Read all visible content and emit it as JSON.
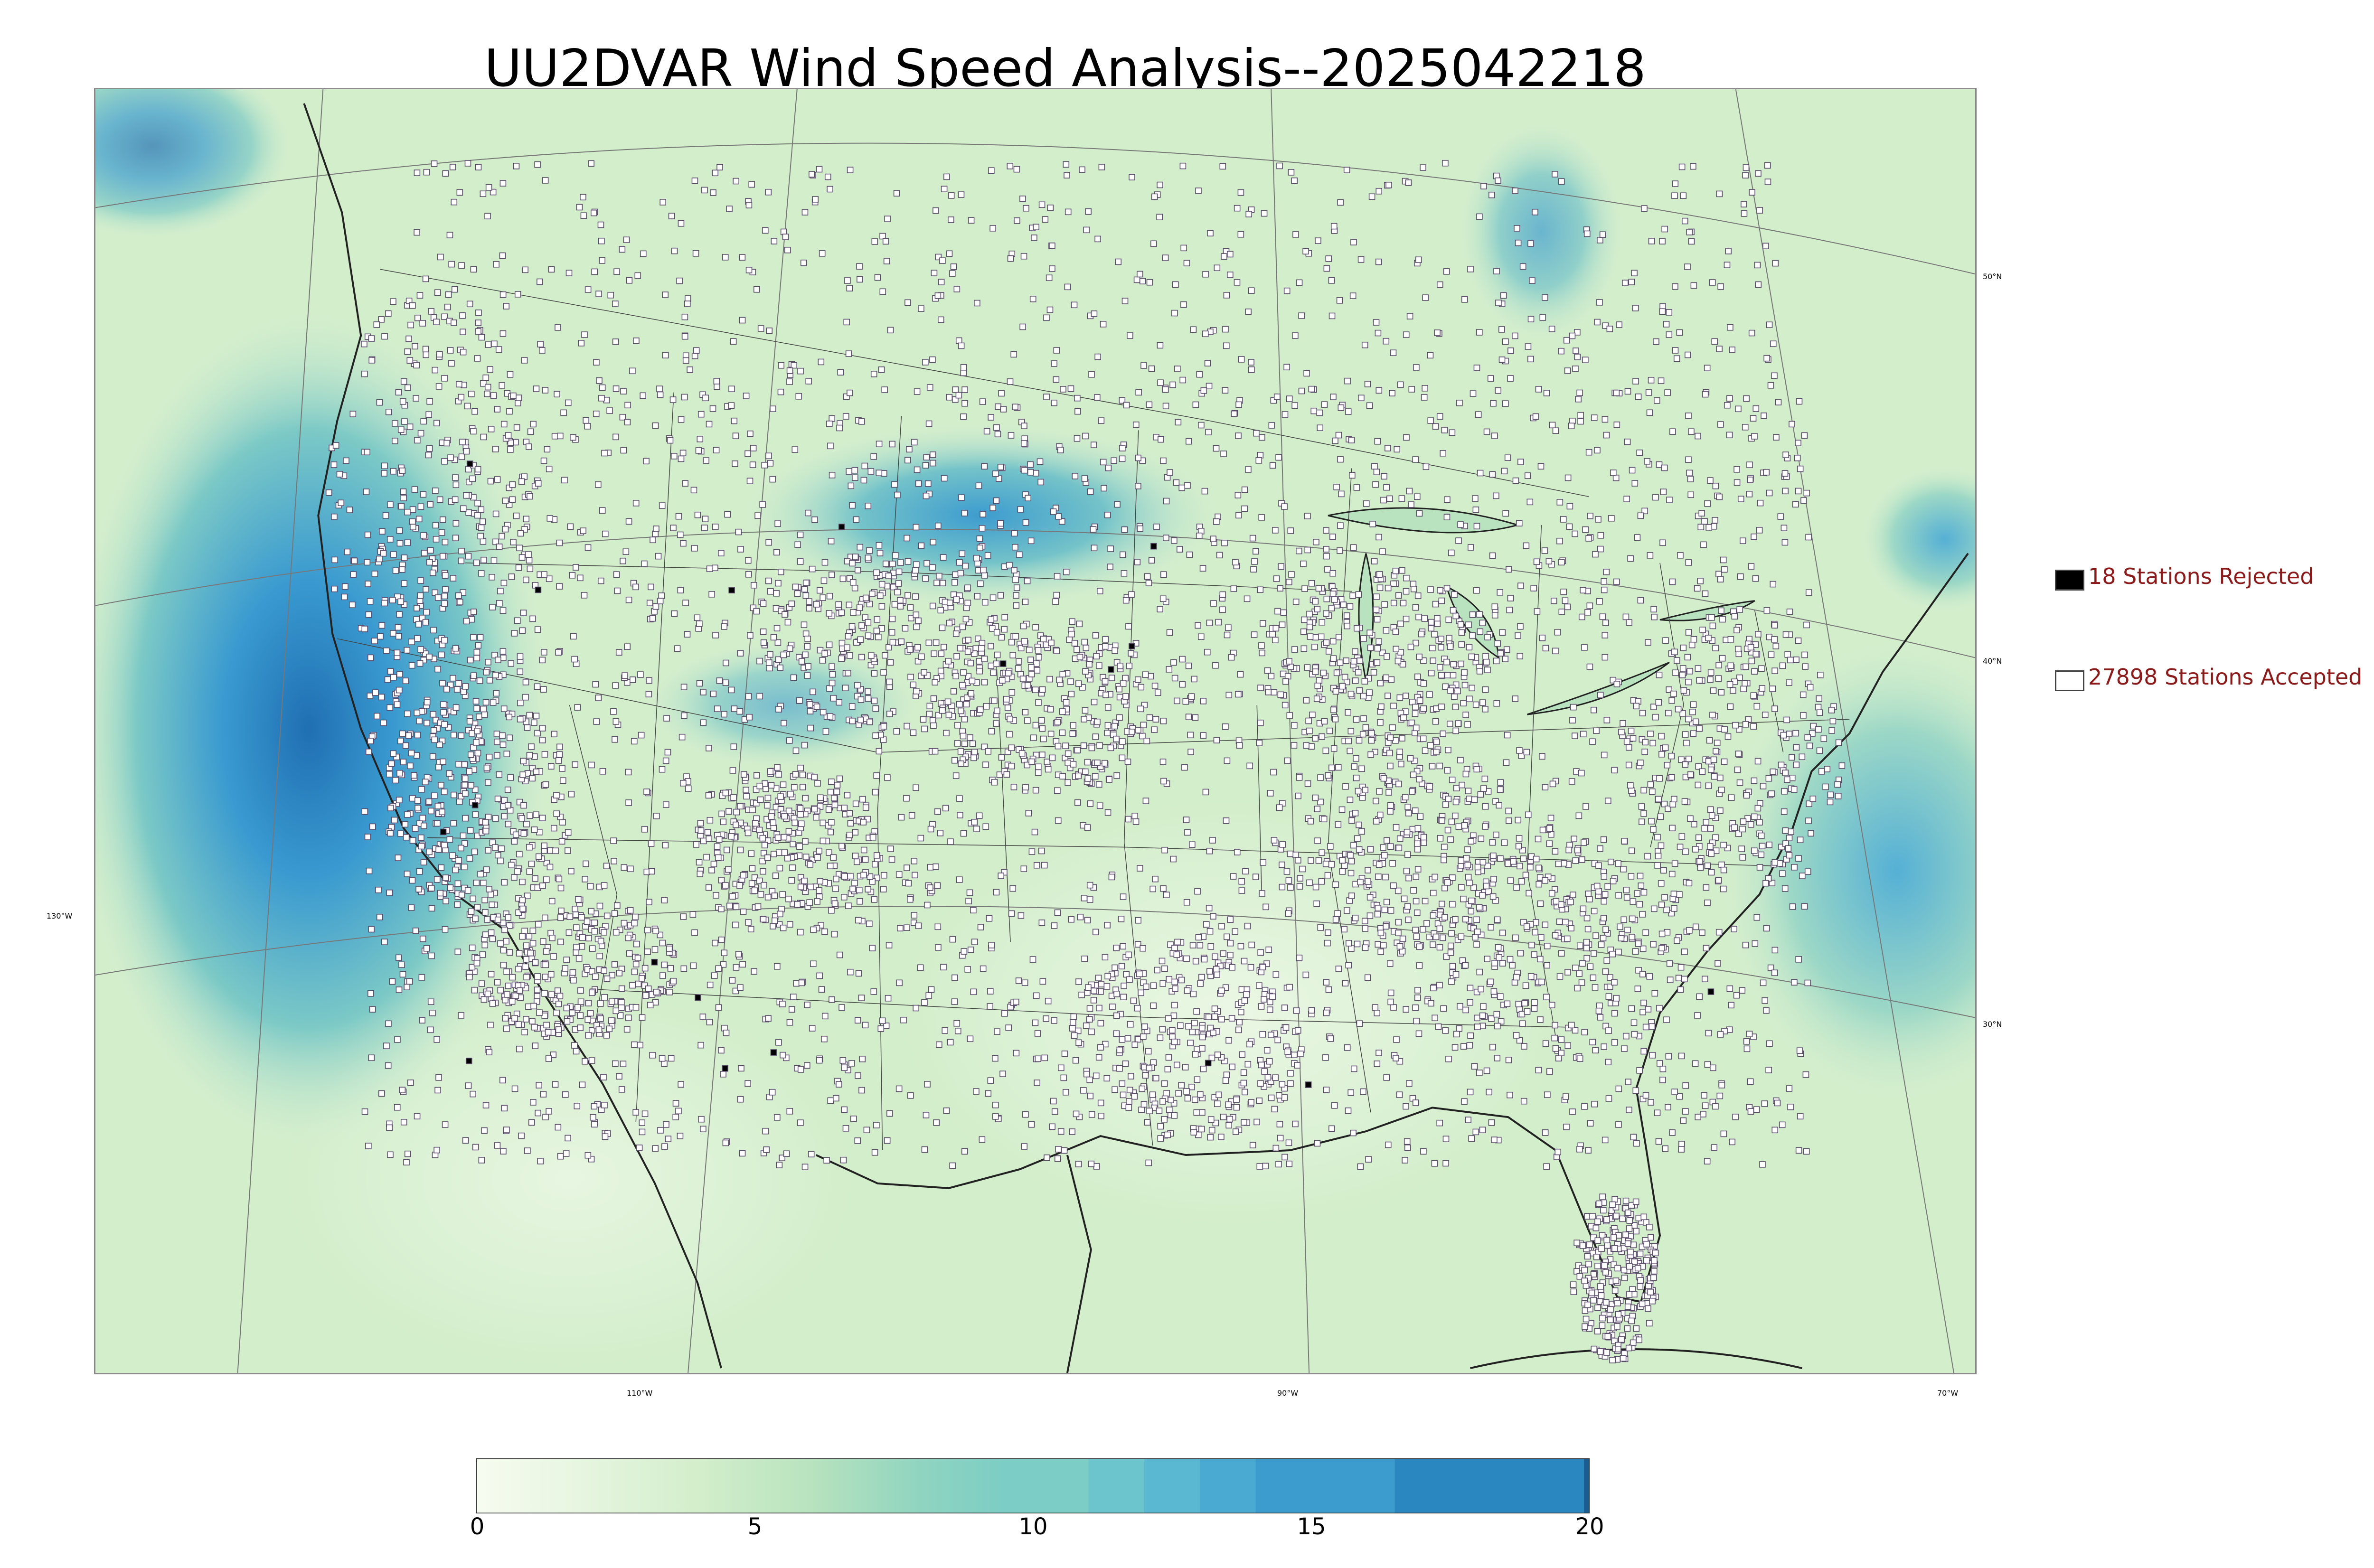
{
  "title": "UU2DVAR Wind Speed Analysis--2025042218",
  "map": {
    "latitude_labels": [
      "50°N",
      "40°N",
      "30°N"
    ],
    "longitude_labels": [
      "130°W",
      "110°W",
      "90°W",
      "70°W"
    ],
    "projection": "lambert-conformal",
    "field": "wind speed",
    "colors": {
      "ocean_base": "#d6efd0",
      "land_base": "#d9f0d3",
      "high_wind": "#3a9ad0",
      "boundary": "#333333",
      "accepted_marker": "#ffffff",
      "rejected_marker": "#000000"
    }
  },
  "legend": {
    "rejected": {
      "label": "18 Stations Rejected",
      "count": 18,
      "color": "#000000"
    },
    "accepted": {
      "label": "27898 Stations Accepted",
      "count": 27898,
      "color": "#ffffff"
    },
    "text_color": "#8b1a1a"
  },
  "colorbar": {
    "min": 0,
    "max": 20,
    "ticks": [
      "0",
      "5",
      "10",
      "15",
      "20"
    ],
    "stops": [
      {
        "value": 0,
        "color": "#f7fcf0"
      },
      {
        "value": 2,
        "color": "#e5f5df"
      },
      {
        "value": 4,
        "color": "#d3eecb"
      },
      {
        "value": 6,
        "color": "#b8e3be"
      },
      {
        "value": 8,
        "color": "#8fd4c0"
      },
      {
        "value": 9.5,
        "color": "#7ccdc5"
      },
      {
        "value": 11,
        "color": "#6cc4cd"
      },
      {
        "value": 12,
        "color": "#5ab8d3"
      },
      {
        "value": 13,
        "color": "#4aaad2"
      },
      {
        "value": 14,
        "color": "#3d9cce"
      },
      {
        "value": 16.5,
        "color": "#2b87c0"
      },
      {
        "value": 19.9,
        "color": "#1a5d91"
      },
      {
        "value": 20,
        "color": "#08306b"
      }
    ]
  }
}
